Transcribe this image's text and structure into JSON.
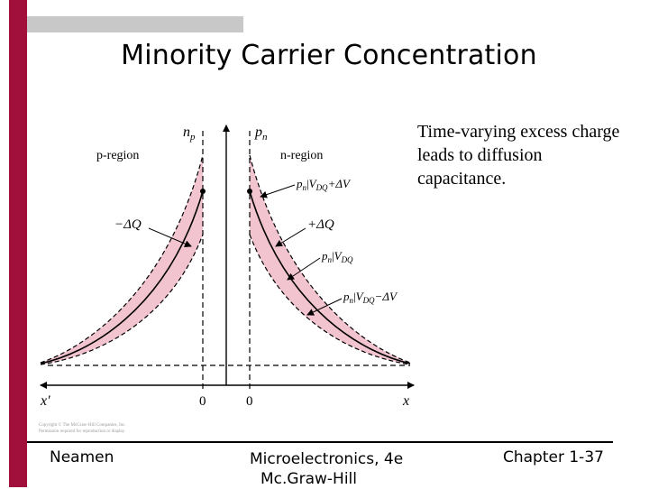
{
  "slide": {
    "title": "Minority Carrier Concentration",
    "caption": "Time-varying excess charge leads to diffusion capacitance.",
    "footer": {
      "left": "Neamen",
      "center_line1": "Microelectronics, 4e",
      "center_line2": "Mc.Graw-Hill",
      "right": "Chapter 1-37"
    }
  },
  "figure": {
    "axes": {
      "np": "n",
      "np_sub": "p",
      "pn": "p",
      "pn_sub": "n",
      "x_left": "x′",
      "x_right": "x",
      "zero_left": "0",
      "zero_right": "0"
    },
    "regions": {
      "p": "p-region",
      "n": "n-region"
    },
    "annotations": {
      "minus_dq": "−ΔQ",
      "plus_dq": "+ΔQ",
      "pn_upper": "p",
      "pn_upper_sub": "n",
      "pn_upper_tail": "|",
      "pn_upper_v": "V",
      "pn_upper_vsub": "DQ",
      "pn_upper_delta": "+ΔV",
      "pn_mid": "p",
      "pn_mid_sub": "n",
      "pn_mid_tail": "|",
      "pn_mid_v": "V",
      "pn_mid_vsub": "DQ",
      "pn_lower": "p",
      "pn_lower_sub": "n",
      "pn_lower_tail": "|",
      "pn_lower_v": "V",
      "pn_lower_vsub": "DQ",
      "pn_lower_delta": "−ΔV"
    },
    "copyright_line1": "Copyright © The McGraw-Hill Companies, Inc.",
    "copyright_line2": "Permission required for reproduction or display.",
    "colors": {
      "band_fill": "#f2c4cf",
      "accent_bar": "#a0103a",
      "top_strip": "#c8c8c8"
    }
  }
}
